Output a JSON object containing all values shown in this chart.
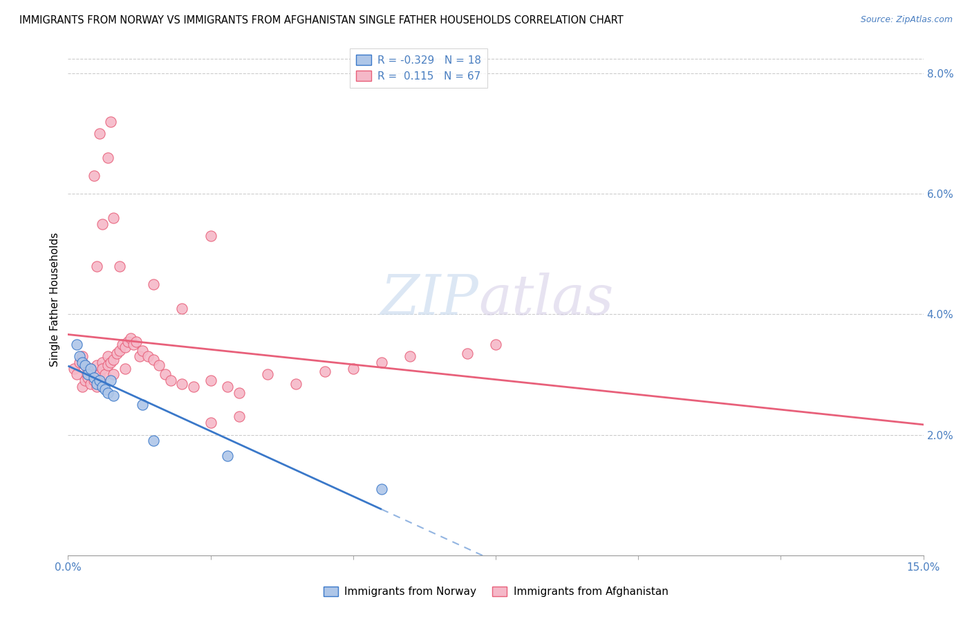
{
  "title": "IMMIGRANTS FROM NORWAY VS IMMIGRANTS FROM AFGHANISTAN SINGLE FATHER HOUSEHOLDS CORRELATION CHART",
  "source": "Source: ZipAtlas.com",
  "ylabel": "Single Father Households",
  "ylabel_right_vals": [
    2.0,
    4.0,
    6.0,
    8.0
  ],
  "xmin": 0.0,
  "xmax": 15.0,
  "ymin": 0.0,
  "ymax": 8.5,
  "norway_R": -0.329,
  "norway_N": 18,
  "afghanistan_R": 0.115,
  "afghanistan_N": 67,
  "norway_color": "#aec6e8",
  "afghanistan_color": "#f5b8c8",
  "norway_line_color": "#3a78c9",
  "afghanistan_line_color": "#e8607a",
  "legend_text_color": "#4a7fc1",
  "tick_color": "#4a7fc1",
  "watermark_zip": "ZIP",
  "watermark_atlas": "atlas",
  "norway_points": [
    [
      0.15,
      3.5
    ],
    [
      0.2,
      3.3
    ],
    [
      0.25,
      3.2
    ],
    [
      0.3,
      3.15
    ],
    [
      0.35,
      3.0
    ],
    [
      0.4,
      3.1
    ],
    [
      0.45,
      2.95
    ],
    [
      0.5,
      2.85
    ],
    [
      0.55,
      2.9
    ],
    [
      0.6,
      2.8
    ],
    [
      0.65,
      2.75
    ],
    [
      0.7,
      2.7
    ],
    [
      0.75,
      2.9
    ],
    [
      0.8,
      2.65
    ],
    [
      1.3,
      2.5
    ],
    [
      1.5,
      1.9
    ],
    [
      2.8,
      1.65
    ],
    [
      5.5,
      1.1
    ]
  ],
  "afghanistan_points": [
    [
      0.1,
      3.1
    ],
    [
      0.15,
      3.0
    ],
    [
      0.2,
      3.2
    ],
    [
      0.25,
      3.3
    ],
    [
      0.25,
      2.8
    ],
    [
      0.3,
      2.9
    ],
    [
      0.3,
      3.15
    ],
    [
      0.35,
      3.05
    ],
    [
      0.35,
      2.95
    ],
    [
      0.4,
      3.1
    ],
    [
      0.4,
      2.85
    ],
    [
      0.45,
      3.0
    ],
    [
      0.45,
      2.9
    ],
    [
      0.5,
      3.15
    ],
    [
      0.5,
      2.8
    ],
    [
      0.55,
      3.0
    ],
    [
      0.55,
      2.9
    ],
    [
      0.6,
      3.2
    ],
    [
      0.6,
      3.1
    ],
    [
      0.65,
      3.0
    ],
    [
      0.7,
      3.3
    ],
    [
      0.7,
      3.15
    ],
    [
      0.75,
      3.2
    ],
    [
      0.8,
      3.25
    ],
    [
      0.8,
      3.0
    ],
    [
      0.85,
      3.35
    ],
    [
      0.9,
      3.4
    ],
    [
      0.95,
      3.5
    ],
    [
      1.0,
      3.45
    ],
    [
      1.0,
      3.1
    ],
    [
      1.05,
      3.55
    ],
    [
      1.1,
      3.6
    ],
    [
      1.15,
      3.5
    ],
    [
      1.2,
      3.55
    ],
    [
      1.25,
      3.3
    ],
    [
      1.3,
      3.4
    ],
    [
      1.4,
      3.3
    ],
    [
      1.5,
      3.25
    ],
    [
      1.6,
      3.15
    ],
    [
      1.7,
      3.0
    ],
    [
      1.8,
      2.9
    ],
    [
      2.0,
      2.85
    ],
    [
      2.2,
      2.8
    ],
    [
      2.5,
      2.9
    ],
    [
      2.8,
      2.8
    ],
    [
      3.0,
      2.7
    ],
    [
      3.5,
      3.0
    ],
    [
      4.0,
      2.85
    ],
    [
      4.5,
      3.05
    ],
    [
      5.0,
      3.1
    ],
    [
      5.5,
      3.2
    ],
    [
      6.0,
      3.3
    ],
    [
      7.0,
      3.35
    ],
    [
      7.5,
      3.5
    ],
    [
      0.5,
      4.8
    ],
    [
      0.6,
      5.5
    ],
    [
      0.7,
      6.6
    ],
    [
      0.75,
      7.2
    ],
    [
      0.55,
      7.0
    ],
    [
      0.45,
      6.3
    ],
    [
      1.5,
      4.5
    ],
    [
      2.0,
      4.1
    ],
    [
      2.5,
      5.3
    ],
    [
      0.9,
      4.8
    ],
    [
      0.8,
      5.6
    ],
    [
      3.0,
      2.3
    ],
    [
      2.5,
      2.2
    ]
  ]
}
